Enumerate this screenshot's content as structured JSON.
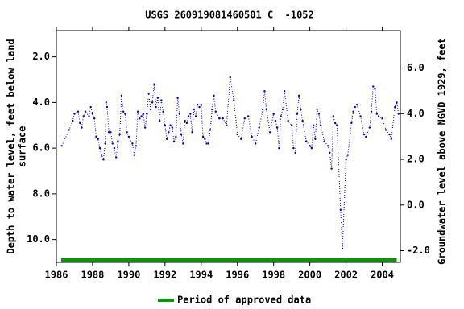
{
  "chart_data": {
    "type": "line",
    "title": "USGS 260919081460501 C  -1052",
    "ylabel": [
      "Depth to water level, feet below land",
      "surface"
    ],
    "y2label": "Groundwater level above NGVD 1929, feet",
    "color": "#0000cc",
    "xlim": [
      1986,
      2005
    ],
    "xticks": [
      1986,
      1988,
      1990,
      1992,
      1994,
      1996,
      1998,
      2000,
      2002,
      2004
    ],
    "ylim": [
      11,
      0.85
    ],
    "yticks": [
      {
        "value": 2,
        "label": "2.0"
      },
      {
        "value": 4,
        "label": "4.0"
      },
      {
        "value": 6,
        "label": "6.0"
      },
      {
        "value": 8,
        "label": "8.0"
      },
      {
        "value": 10,
        "label": "10.0"
      }
    ],
    "y2lim": [
      -2.51,
      7.64
    ],
    "y2ticks": [
      {
        "value": -2,
        "label": "-2.0"
      },
      {
        "value": 0,
        "label": "0.0"
      },
      {
        "value": 2,
        "label": "2.0"
      },
      {
        "value": 4,
        "label": "4.0"
      },
      {
        "value": 6,
        "label": "6.0"
      }
    ],
    "x": [
      1986.3,
      1986.7,
      1986.9,
      1987.0,
      1987.2,
      1987.3,
      1987.4,
      1987.5,
      1987.6,
      1987.8,
      1987.9,
      1988.0,
      1988.1,
      1988.2,
      1988.3,
      1988.4,
      1988.5,
      1988.6,
      1988.7,
      1988.75,
      1988.8,
      1988.9,
      1989.0,
      1989.1,
      1989.2,
      1989.3,
      1989.4,
      1989.5,
      1989.6,
      1989.7,
      1989.8,
      1989.9,
      1990.0,
      1990.2,
      1990.3,
      1990.4,
      1990.5,
      1990.6,
      1990.7,
      1990.8,
      1990.9,
      1991.0,
      1991.1,
      1991.2,
      1991.3,
      1991.4,
      1991.5,
      1991.6,
      1991.7,
      1991.8,
      1991.9,
      1992.0,
      1992.1,
      1992.2,
      1992.3,
      1992.4,
      1992.5,
      1992.6,
      1992.7,
      1992.8,
      1992.9,
      1993.0,
      1993.1,
      1993.2,
      1993.3,
      1993.4,
      1993.5,
      1993.6,
      1993.7,
      1993.8,
      1993.9,
      1994.0,
      1994.1,
      1994.2,
      1994.3,
      1994.4,
      1994.5,
      1994.6,
      1994.7,
      1994.8,
      1995.0,
      1995.2,
      1995.4,
      1995.6,
      1995.8,
      1996.0,
      1996.2,
      1996.4,
      1996.6,
      1996.8,
      1997.0,
      1997.2,
      1997.4,
      1997.5,
      1997.6,
      1997.8,
      1998.0,
      1998.1,
      1998.2,
      1998.3,
      1998.4,
      1998.5,
      1998.6,
      1998.8,
      1999.0,
      1999.1,
      1999.2,
      1999.3,
      1999.4,
      1999.5,
      1999.6,
      1999.8,
      2000.0,
      2000.1,
      2000.2,
      2000.3,
      2000.4,
      2000.5,
      2000.6,
      2000.8,
      2001.0,
      2001.1,
      2001.2,
      2001.3,
      2001.4,
      2001.5,
      2001.7,
      2001.8,
      2002.0,
      2002.1,
      2002.3,
      2002.4,
      2002.5,
      2002.6,
      2002.8,
      2003.0,
      2003.1,
      2003.3,
      2003.4,
      2003.5,
      2003.6,
      2003.7,
      2003.8,
      2004.0,
      2004.2,
      2004.4,
      2004.5,
      2004.7,
      2004.8,
      2004.9
    ],
    "values": [
      5.9,
      5.2,
      4.8,
      4.5,
      4.4,
      4.9,
      5.1,
      4.6,
      4.4,
      4.6,
      4.2,
      4.5,
      4.7,
      5.5,
      5.6,
      6.0,
      6.3,
      6.5,
      5.8,
      4.0,
      4.2,
      5.3,
      5.3,
      5.8,
      6.0,
      6.4,
      5.7,
      5.4,
      3.7,
      4.4,
      4.5,
      5.3,
      5.5,
      5.8,
      6.3,
      5.9,
      4.4,
      4.7,
      4.6,
      4.5,
      5.1,
      4.5,
      3.6,
      4.3,
      4.0,
      3.2,
      4.2,
      3.8,
      4.8,
      3.9,
      4.4,
      5.0,
      5.6,
      5.3,
      5.0,
      5.1,
      5.7,
      5.5,
      3.8,
      4.5,
      5.4,
      5.8,
      4.8,
      4.9,
      4.6,
      4.5,
      5.3,
      4.3,
      4.6,
      4.1,
      4.2,
      4.1,
      5.5,
      5.6,
      5.8,
      5.8,
      5.2,
      4.3,
      3.7,
      4.4,
      4.7,
      4.7,
      5.0,
      2.9,
      3.9,
      5.4,
      5.6,
      4.7,
      4.6,
      5.5,
      5.8,
      5.1,
      4.3,
      3.5,
      4.3,
      5.3,
      4.5,
      4.8,
      5.1,
      6.0,
      4.6,
      4.3,
      3.5,
      4.8,
      5.0,
      6.0,
      6.2,
      4.5,
      3.7,
      4.3,
      4.8,
      5.7,
      5.9,
      6.0,
      5.0,
      5.6,
      4.3,
      4.5,
      5.0,
      5.7,
      5.9,
      6.2,
      6.9,
      4.6,
      4.9,
      5.0,
      8.7,
      10.4,
      6.5,
      6.3,
      4.9,
      4.4,
      4.2,
      4.1,
      4.6,
      5.4,
      5.5,
      5.1,
      4.4,
      3.3,
      3.4,
      4.5,
      4.6,
      4.7,
      5.2,
      5.4,
      5.6,
      4.2,
      4.0,
      4.5
    ],
    "approved_period": {
      "name": "Period of approved data",
      "color": "#009900",
      "x": [
        1986.27,
        2004.8
      ]
    }
  }
}
